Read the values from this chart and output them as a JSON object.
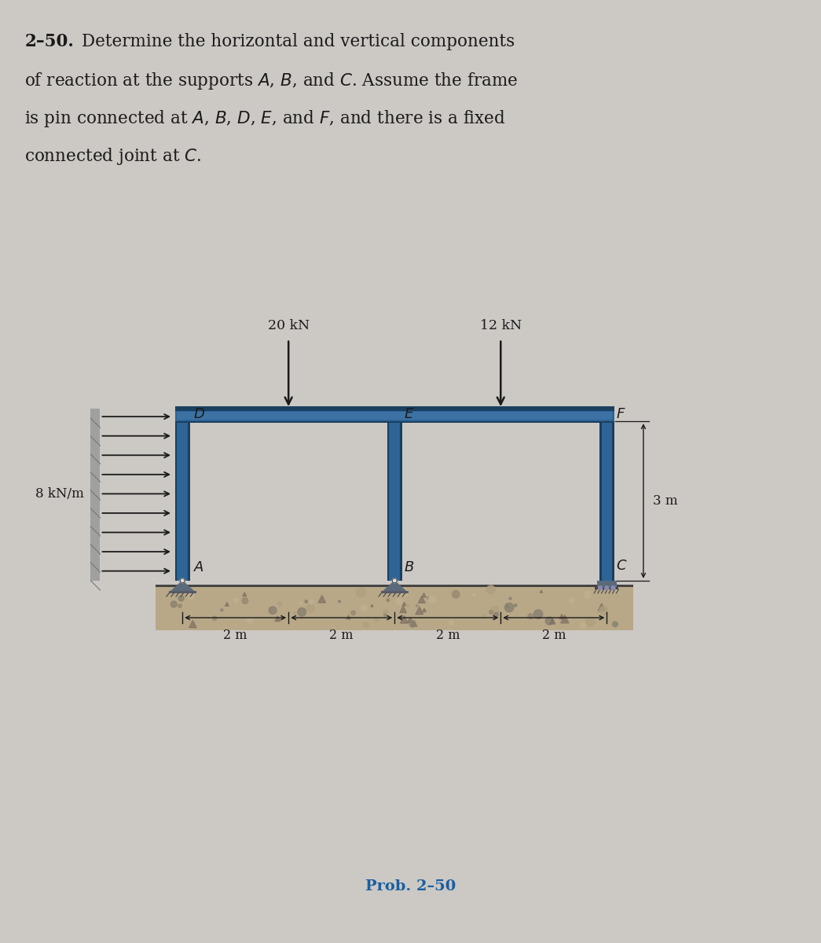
{
  "bg_color": "#ccc8c4",
  "frame_color": "#2e6496",
  "frame_dark": "#1a3f60",
  "frame_light": "#4a80b0",
  "text_color": "#1a1a1a",
  "prob_color": "#1a5fa0",
  "title_number": "2–50.",
  "prob_label": "Prob. 2–50",
  "load_20kN": "20 kN",
  "load_12kN": "12 kN",
  "load_dist": "8 kN/m",
  "dim_3m": "3 m",
  "dims": [
    "2 m",
    "2 m",
    "2 m",
    "2 m"
  ]
}
